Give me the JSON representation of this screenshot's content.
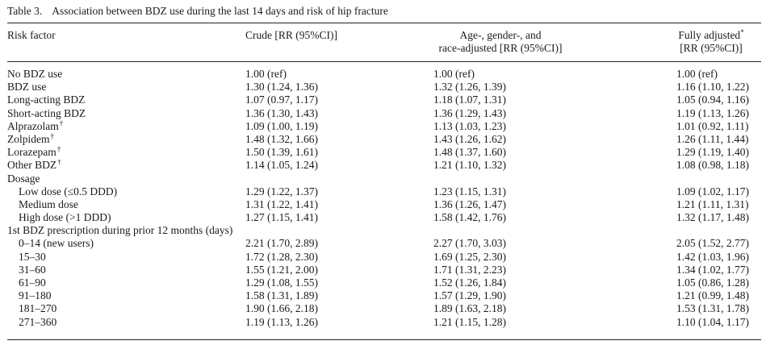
{
  "caption": {
    "label": "Table 3.",
    "title": "Association between BDZ use during the last 14 days and risk of hip fracture"
  },
  "headers": {
    "risk_factor": "Risk factor",
    "crude": "Crude [RR (95%CI)]",
    "age_line1": "Age-, gender-, and",
    "age_line2": "race-adjusted [RR (95%CI)]",
    "full_line1": "Fully adjusted",
    "full_sup": "*",
    "full_line2": "[RR (95%CI)]"
  },
  "rows": [
    {
      "label": "No BDZ use",
      "crude": "1.00 (ref)",
      "age": "1.00 (ref)",
      "full": "1.00 (ref)"
    },
    {
      "label": "BDZ use",
      "crude": "1.30 (1.24, 1.36)",
      "age": "1.32 (1.26, 1.39)",
      "full": "1.16 (1.10, 1.22)"
    },
    {
      "label": "Long-acting BDZ",
      "crude": "1.07 (0.97, 1.17)",
      "age": "1.18 (1.07, 1.31)",
      "full": "1.05 (0.94, 1.16)"
    },
    {
      "label": "Short-acting BDZ",
      "crude": "1.36 (1.30, 1.43)",
      "age": "1.36 (1.29, 1.43)",
      "full": "1.19 (1.13, 1.26)"
    },
    {
      "label": "Alprazolam",
      "sup": "†",
      "crude": "1.09 (1.00, 1.19)",
      "age": "1.13 (1.03, 1.23)",
      "full": "1.01 (0.92, 1.11)"
    },
    {
      "label": "Zolpidem",
      "sup": "†",
      "crude": "1.48 (1.32, 1.66)",
      "age": "1.43 (1.26, 1.62)",
      "full": "1.26 (1.11, 1.44)"
    },
    {
      "label": "Lorazepam",
      "sup": "†",
      "crude": "1.50 (1.39, 1.61)",
      "age": "1.48 (1.37, 1.60)",
      "full": "1.29 (1.19, 1.40)"
    },
    {
      "label": "Other BDZ",
      "sup": "†",
      "crude": "1.14 (1.05, 1.24)",
      "age": "1.21 (1.10, 1.32)",
      "full": "1.08 (0.98, 1.18)"
    },
    {
      "label": "Dosage",
      "crude": "",
      "age": "",
      "full": ""
    },
    {
      "label": "Low dose (≤0.5 DDD)",
      "indent": true,
      "crude": "1.29 (1.22, 1.37)",
      "age": "1.23 (1.15, 1.31)",
      "full": "1.09 (1.02, 1.17)"
    },
    {
      "label": "Medium dose",
      "indent": true,
      "crude": "1.31 (1.22, 1.41)",
      "age": "1.36 (1.26, 1.47)",
      "full": "1.21 (1.11, 1.31)"
    },
    {
      "label": "High dose (>1 DDD)",
      "indent": true,
      "crude": "1.27 (1.15, 1.41)",
      "age": "1.58 (1.42, 1.76)",
      "full": "1.32 (1.17, 1.48)"
    },
    {
      "label": "1st BDZ prescription during prior 12 months (days)",
      "crude": "",
      "age": "",
      "full": ""
    },
    {
      "label": "0–14 (new users)",
      "indent": true,
      "crude": "2.21 (1.70, 2.89)",
      "age": "2.27 (1.70, 3.03)",
      "full": "2.05 (1.52, 2.77)"
    },
    {
      "label": "15–30",
      "indent": true,
      "crude": "1.72 (1.28, 2.30)",
      "age": "1.69 (1.25, 2.30)",
      "full": "1.42 (1.03, 1.96)"
    },
    {
      "label": "31–60",
      "indent": true,
      "crude": "1.55 (1.21, 2.00)",
      "age": "1.71 (1.31, 2.23)",
      "full": "1.34 (1.02, 1.77)"
    },
    {
      "label": "61–90",
      "indent": true,
      "crude": "1.29 (1.08, 1.55)",
      "age": "1.52 (1.26, 1.84)",
      "full": "1.05 (0.86, 1.28)"
    },
    {
      "label": "91–180",
      "indent": true,
      "crude": "1.58 (1.31, 1.89)",
      "age": "1.57 (1.29, 1.90)",
      "full": "1.21 (0.99, 1.48)"
    },
    {
      "label": "181–270",
      "indent": true,
      "crude": "1.90 (1.66, 2.18)",
      "age": "1.89 (1.63, 2.18)",
      "full": "1.53 (1.31, 1.78)"
    },
    {
      "label": "271–360",
      "indent": true,
      "crude": "1.19 (1.13, 1.26)",
      "age": "1.21 (1.15, 1.28)",
      "full": "1.10 (1.04, 1.17)"
    }
  ]
}
